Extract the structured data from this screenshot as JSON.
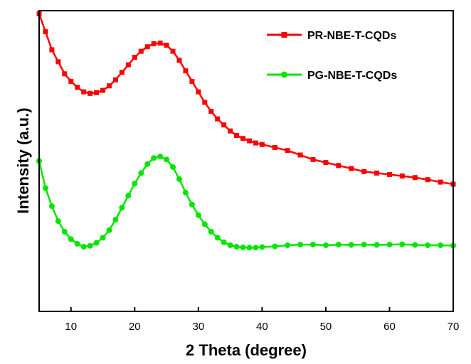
{
  "chart_data": {
    "type": "line",
    "xlabel": "2 Theta (degree)",
    "ylabel": "Intensity (a.u.)",
    "xlim": [
      5,
      70
    ],
    "ylim": [
      0,
      1
    ],
    "x_ticks": [
      10,
      20,
      30,
      40,
      50,
      60,
      70
    ],
    "y_ticks_shown": false,
    "grid": false,
    "legend_position": "top-right",
    "series": [
      {
        "name": "PR-NBE-T-CQDs",
        "color": "#ff0000",
        "marker": "square",
        "x": [
          5,
          6,
          7,
          8,
          9,
          10,
          11,
          12,
          13,
          14,
          15,
          16,
          17,
          18,
          19,
          20,
          21,
          22,
          23,
          24,
          25,
          26,
          27,
          28,
          29,
          30,
          31,
          32,
          33,
          34,
          35,
          36,
          37,
          38,
          39,
          40,
          42,
          44,
          46,
          48,
          50,
          52,
          54,
          56,
          58,
          60,
          62,
          64,
          66,
          68,
          70
        ],
        "y": [
          0.99,
          0.93,
          0.87,
          0.83,
          0.79,
          0.765,
          0.745,
          0.73,
          0.725,
          0.727,
          0.735,
          0.75,
          0.77,
          0.795,
          0.82,
          0.845,
          0.865,
          0.88,
          0.89,
          0.892,
          0.885,
          0.865,
          0.835,
          0.8,
          0.765,
          0.73,
          0.695,
          0.665,
          0.64,
          0.62,
          0.6,
          0.585,
          0.575,
          0.567,
          0.56,
          0.555,
          0.545,
          0.535,
          0.52,
          0.505,
          0.495,
          0.485,
          0.475,
          0.465,
          0.46,
          0.455,
          0.45,
          0.445,
          0.438,
          0.43,
          0.423
        ]
      },
      {
        "name": "PG-NBE-T-CQDs",
        "color": "#00e600",
        "marker": "circle",
        "x": [
          5,
          6,
          7,
          8,
          9,
          10,
          11,
          12,
          13,
          14,
          15,
          16,
          17,
          18,
          19,
          20,
          21,
          22,
          23,
          24,
          25,
          26,
          27,
          28,
          29,
          30,
          31,
          32,
          33,
          34,
          35,
          36,
          37,
          38,
          39,
          40,
          42,
          44,
          46,
          48,
          50,
          52,
          54,
          56,
          58,
          60,
          62,
          64,
          66,
          68,
          70
        ],
        "y": [
          0.5,
          0.41,
          0.35,
          0.3,
          0.265,
          0.24,
          0.225,
          0.215,
          0.218,
          0.228,
          0.245,
          0.27,
          0.305,
          0.345,
          0.385,
          0.425,
          0.46,
          0.49,
          0.51,
          0.515,
          0.505,
          0.48,
          0.44,
          0.395,
          0.355,
          0.32,
          0.29,
          0.265,
          0.245,
          0.23,
          0.22,
          0.215,
          0.213,
          0.212,
          0.212,
          0.214,
          0.216,
          0.22,
          0.222,
          0.222,
          0.22,
          0.222,
          0.221,
          0.222,
          0.221,
          0.222,
          0.223,
          0.221,
          0.22,
          0.22,
          0.219
        ]
      }
    ]
  }
}
